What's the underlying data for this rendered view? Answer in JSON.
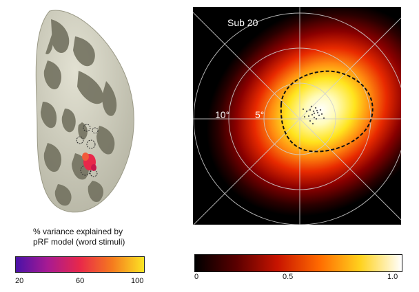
{
  "brain_panel": {
    "legend_title_line1": "% variance explained by",
    "legend_title_line2": "pRF model (word stimuli)",
    "colorbar_ticks": [
      "20",
      "60",
      "100"
    ],
    "colorbar_colors": [
      "#4a12a8",
      "#a81a92",
      "#e8284a",
      "#f57a1e",
      "#fbe424"
    ]
  },
  "polar_plot": {
    "subject_label": "Sub 20",
    "ring_labels": [
      "10°",
      "5°"
    ],
    "background_color": "#000000",
    "grid_color": "#cfcfcf",
    "contour_style": "dashed"
  },
  "heat_colorbar": {
    "ticks": [
      "0",
      "0.5",
      "1.0"
    ],
    "colors": [
      "#000000",
      "#5a0000",
      "#c81400",
      "#ff6a00",
      "#ffd21e",
      "#ffffff"
    ]
  }
}
